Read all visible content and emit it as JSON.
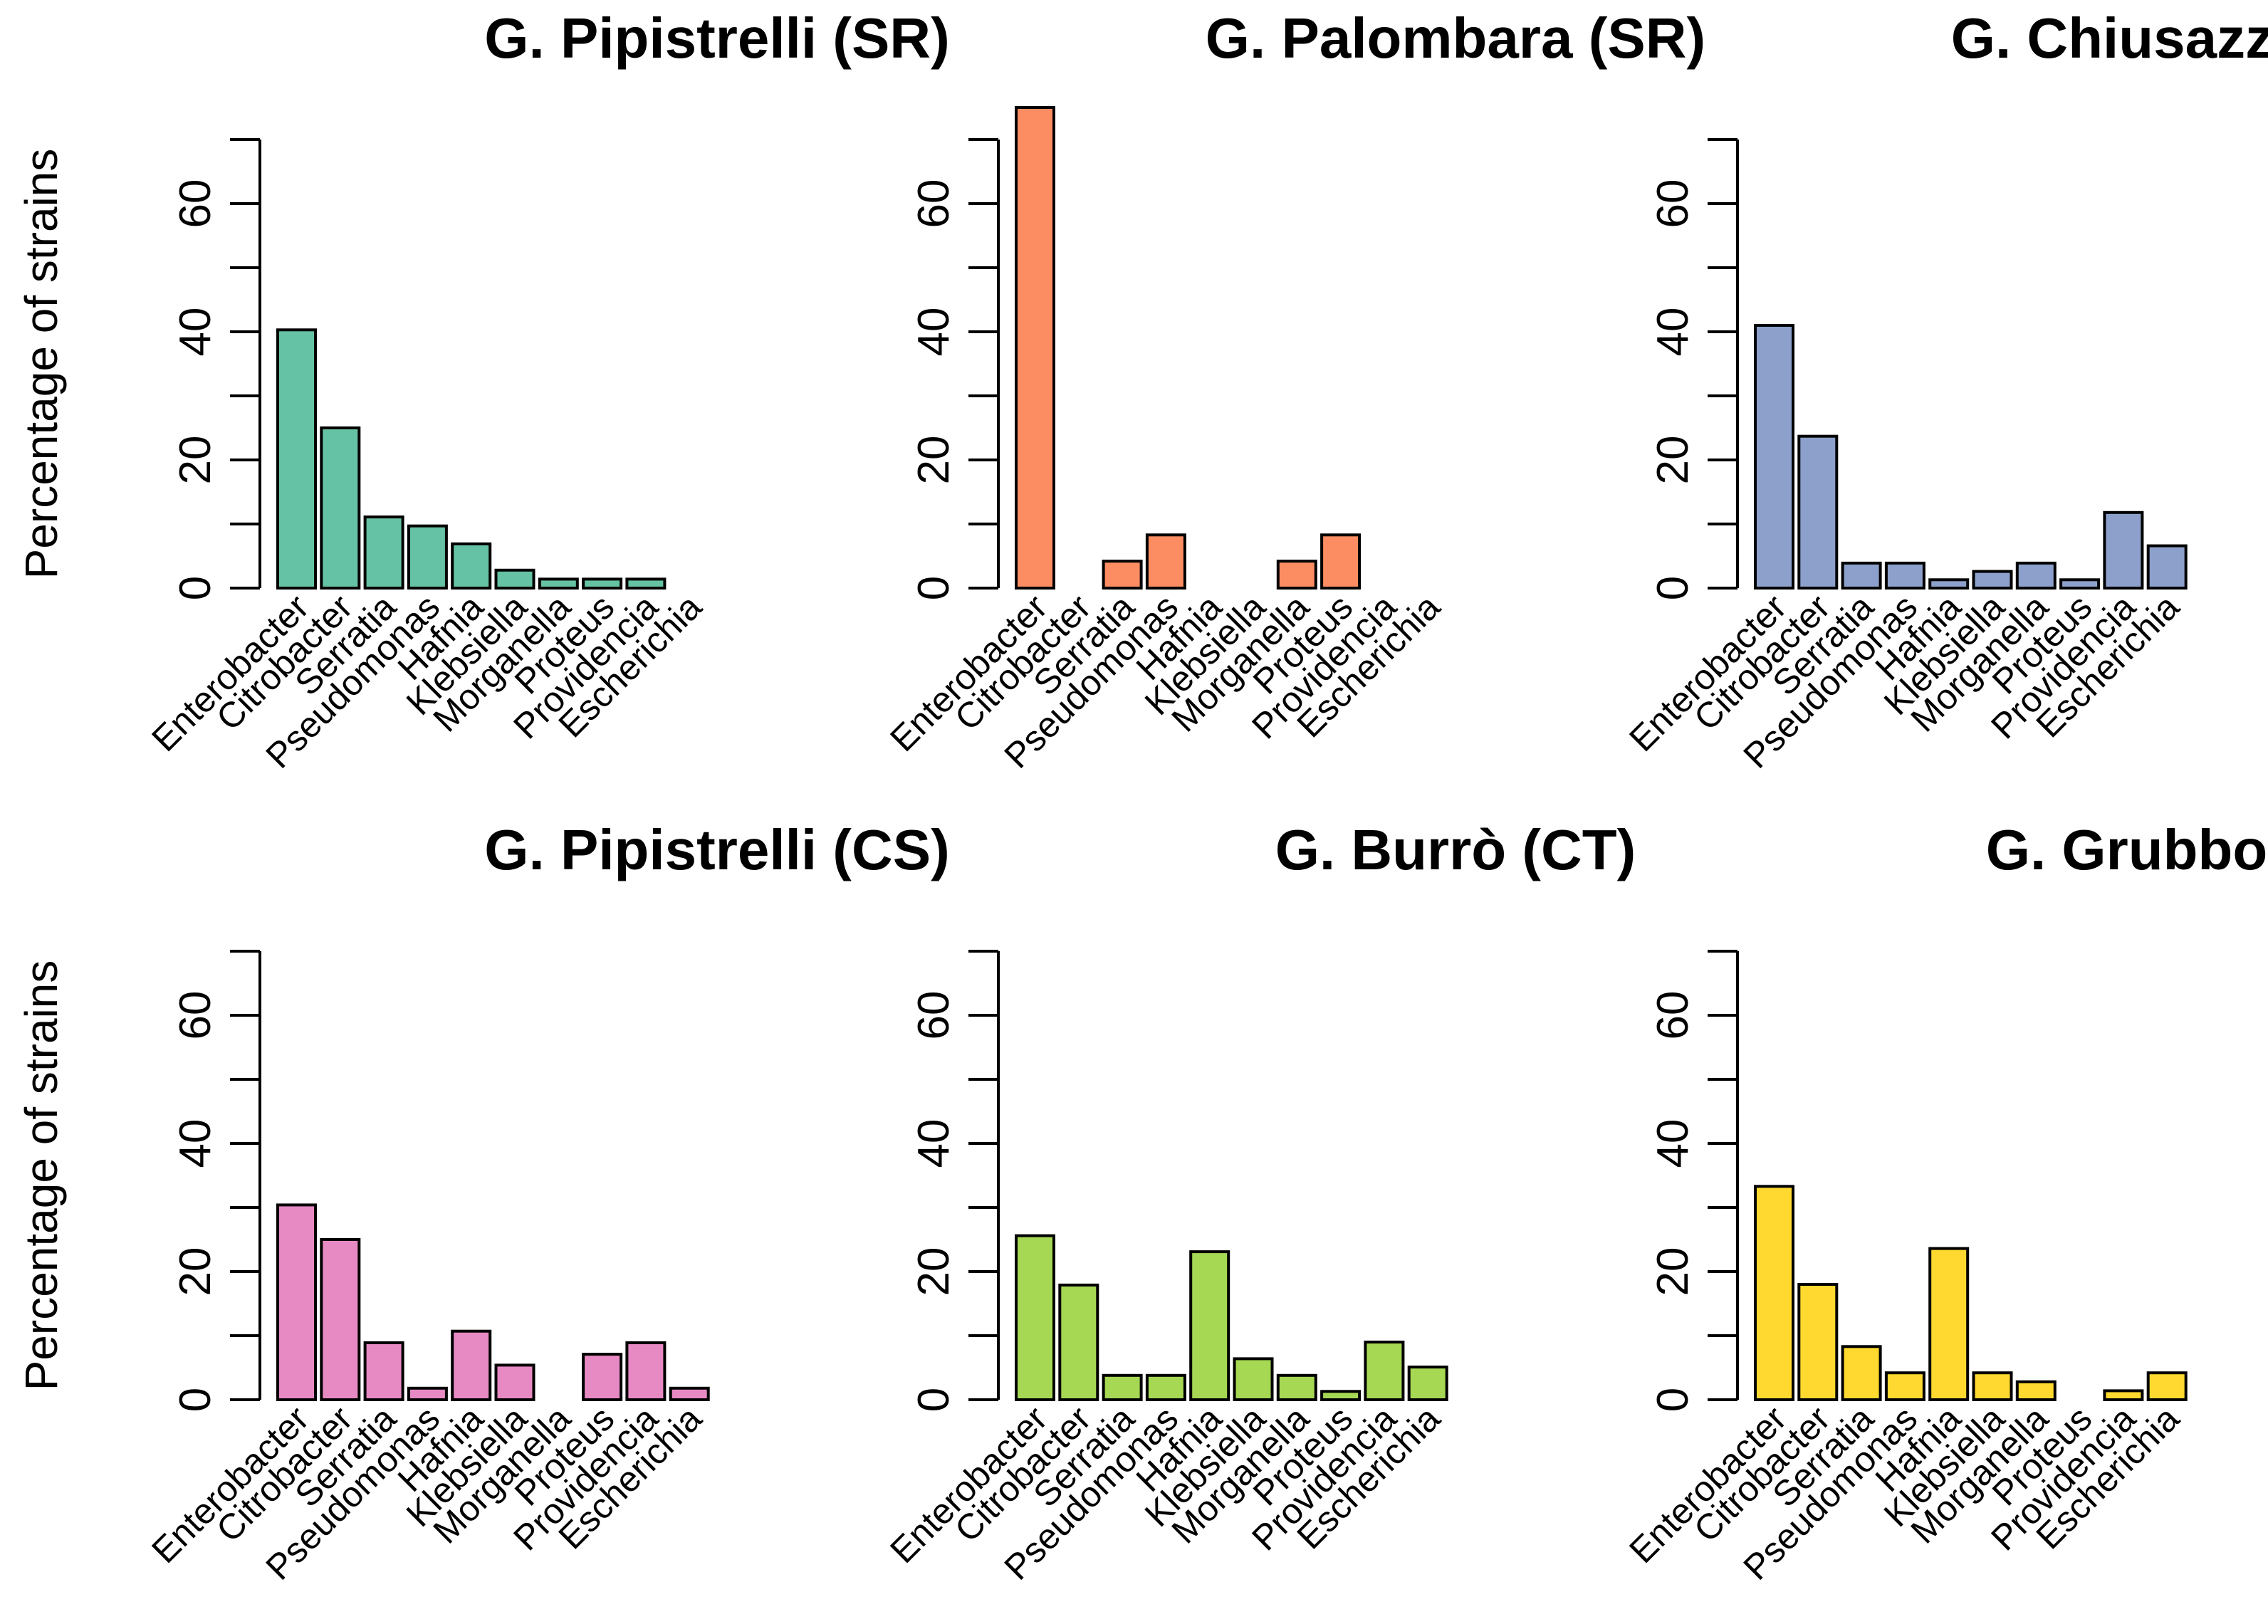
{
  "chart_data": [
    {
      "type": "bar",
      "title": "G. Pipistrelli (SR)",
      "ylabel": "Percentage of strains",
      "xlabel": "",
      "ylim": [
        0,
        70
      ],
      "yticks": [
        0,
        20,
        40,
        60
      ],
      "categories": [
        "Enterobacter",
        "Citrobacter",
        "Serratia",
        "Pseudomonas",
        "Hafnia",
        "Klebsiella",
        "Morganella",
        "Proteus",
        "Providencia",
        "Escherichia"
      ],
      "values": [
        40.3,
        25.0,
        11.1,
        9.7,
        6.9,
        2.8,
        1.4,
        1.4,
        1.4,
        0
      ],
      "color": "#66c2a5"
    },
    {
      "type": "bar",
      "title": "G. Palombara (SR)",
      "ylabel": "",
      "xlabel": "",
      "ylim": [
        0,
        70
      ],
      "yticks": [
        0,
        20,
        40,
        60
      ],
      "categories": [
        "Enterobacter",
        "Citrobacter",
        "Serratia",
        "Pseudomonas",
        "Hafnia",
        "Klebsiella",
        "Morganella",
        "Proteus",
        "Providencia",
        "Escherichia"
      ],
      "values": [
        75.0,
        0,
        4.2,
        8.3,
        0,
        0,
        4.2,
        8.3,
        0,
        0
      ],
      "color": "#fc8d62"
    },
    {
      "type": "bar",
      "title": "G. Chiusazza (SR)",
      "ylabel": "",
      "xlabel": "",
      "ylim": [
        0,
        70
      ],
      "yticks": [
        0,
        20,
        40,
        60
      ],
      "categories": [
        "Enterobacter",
        "Citrobacter",
        "Serratia",
        "Pseudomonas",
        "Hafnia",
        "Klebsiella",
        "Morganella",
        "Proteus",
        "Providencia",
        "Escherichia"
      ],
      "values": [
        41.0,
        23.7,
        3.9,
        3.9,
        1.3,
        2.6,
        3.9,
        1.3,
        11.8,
        6.6
      ],
      "color": "#8da0cb"
    },
    {
      "type": "bar",
      "title": "G. Pipistrelli (CS)",
      "ylabel": "Percentage of strains",
      "xlabel": "",
      "ylim": [
        0,
        70
      ],
      "yticks": [
        0,
        20,
        40,
        60
      ],
      "categories": [
        "Enterobacter",
        "Citrobacter",
        "Serratia",
        "Pseudomonas",
        "Hafnia",
        "Klebsiella",
        "Morganella",
        "Proteus",
        "Providencia",
        "Escherichia"
      ],
      "values": [
        30.4,
        25.0,
        8.9,
        1.8,
        10.7,
        5.4,
        0,
        7.1,
        8.9,
        1.8
      ],
      "color": "#e78ac3"
    },
    {
      "type": "bar",
      "title": "G. Burrò (CT)",
      "ylabel": "",
      "xlabel": "",
      "ylim": [
        0,
        70
      ],
      "yticks": [
        0,
        20,
        40,
        60
      ],
      "categories": [
        "Enterobacter",
        "Citrobacter",
        "Serratia",
        "Pseudomonas",
        "Hafnia",
        "Klebsiella",
        "Morganella",
        "Proteus",
        "Providencia",
        "Escherichia"
      ],
      "values": [
        25.6,
        17.9,
        3.8,
        3.8,
        23.1,
        6.4,
        3.8,
        1.3,
        9.0,
        5.1
      ],
      "color": "#a6d854"
    },
    {
      "type": "bar",
      "title": "G. Grubbo (KR)",
      "ylabel": "",
      "xlabel": "",
      "ylim": [
        0,
        70
      ],
      "yticks": [
        0,
        20,
        40,
        60
      ],
      "categories": [
        "Enterobacter",
        "Citrobacter",
        "Serratia",
        "Pseudomonas",
        "Hafnia",
        "Klebsiella",
        "Morganella",
        "Proteus",
        "Providencia",
        "Escherichia"
      ],
      "values": [
        33.3,
        18.0,
        8.3,
        4.2,
        23.6,
        4.2,
        2.8,
        0,
        1.4,
        4.2
      ],
      "color": "#ffd92f"
    }
  ]
}
